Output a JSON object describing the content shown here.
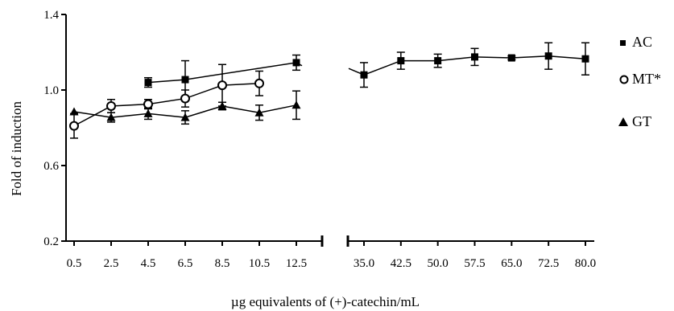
{
  "chart_data": {
    "type": "line",
    "title": "",
    "xlabel": "µg equivalents of (+)-catechin/mL",
    "ylabel": "Fold of induction",
    "ylim": [
      0.2,
      1.4
    ],
    "yticks": [
      "0.2",
      "0.6",
      "1.0",
      "1.4"
    ],
    "axis_break": true,
    "x_segments": [
      {
        "ticks": [
          "0.5",
          "2.5",
          "4.5",
          "6.5",
          "8.5",
          "10.5",
          "12.5"
        ],
        "values": [
          0.5,
          2.5,
          4.5,
          6.5,
          8.5,
          10.5,
          12.5
        ]
      },
      {
        "ticks": [
          "35.0",
          "42.5",
          "50.0",
          "57.5",
          "65.0",
          "72.5",
          "80.0"
        ],
        "values": [
          35.0,
          42.5,
          50.0,
          57.5,
          65.0,
          72.5,
          80.0
        ]
      }
    ],
    "legend_position": "right",
    "series": [
      {
        "name": "AC",
        "marker": "square",
        "x": [
          4.5,
          6.5,
          12.5,
          35.0,
          42.5,
          50.0,
          57.5,
          65.0,
          72.5,
          80.0
        ],
        "y": [
          1.04,
          1.055,
          1.145,
          1.08,
          1.155,
          1.155,
          1.175,
          1.17,
          1.18,
          1.165
        ],
        "err": [
          0.025,
          0.1,
          0.04,
          0.065,
          0.045,
          0.035,
          0.045,
          0.01,
          0.07,
          0.085
        ]
      },
      {
        "name": "MT*",
        "marker": "circle",
        "x": [
          0.5,
          2.5,
          4.5,
          6.5,
          8.5,
          10.5
        ],
        "y": [
          0.81,
          0.915,
          0.925,
          0.955,
          1.025,
          1.035
        ],
        "err": [
          0.065,
          0.035,
          0.025,
          0.045,
          0.11,
          0.065
        ]
      },
      {
        "name": "GT",
        "marker": "triangle",
        "x": [
          0.5,
          2.5,
          4.5,
          6.5,
          8.5,
          10.5,
          12.5
        ],
        "y": [
          0.885,
          0.855,
          0.875,
          0.855,
          0.915,
          0.88,
          0.92
        ],
        "err": [
          0.0,
          0.025,
          0.03,
          0.035,
          0.02,
          0.04,
          0.075
        ]
      }
    ]
  }
}
